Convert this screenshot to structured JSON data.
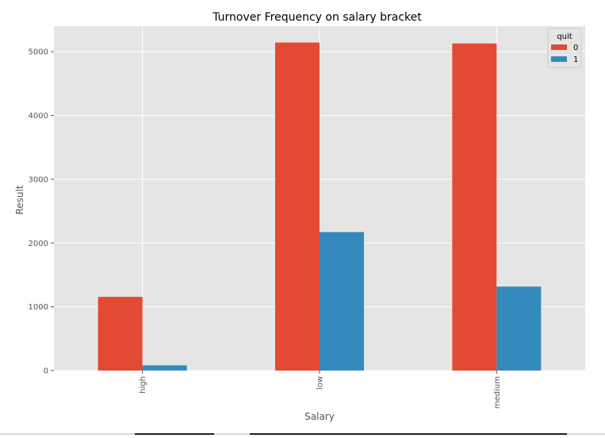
{
  "chart_data": {
    "type": "bar",
    "title": "Turnover Frequency on salary bracket",
    "xlabel": "Salary",
    "ylabel": "Result",
    "categories": [
      "high",
      "low",
      "medium"
    ],
    "series": [
      {
        "name": "0",
        "values": [
          1155,
          5144,
          5129
        ],
        "color": "#E24A33"
      },
      {
        "name": "1",
        "values": [
          82,
          2172,
          1317
        ],
        "color": "#348ABD"
      }
    ],
    "ylim": [
      0,
      5400
    ],
    "yticks": [
      0,
      1000,
      2000,
      3000,
      4000,
      5000
    ],
    "grid": true,
    "legend": {
      "title": "quit",
      "position": "top-right"
    },
    "style": {
      "background": "#E5E5E5",
      "grid_color": "#FFFFFF"
    }
  }
}
